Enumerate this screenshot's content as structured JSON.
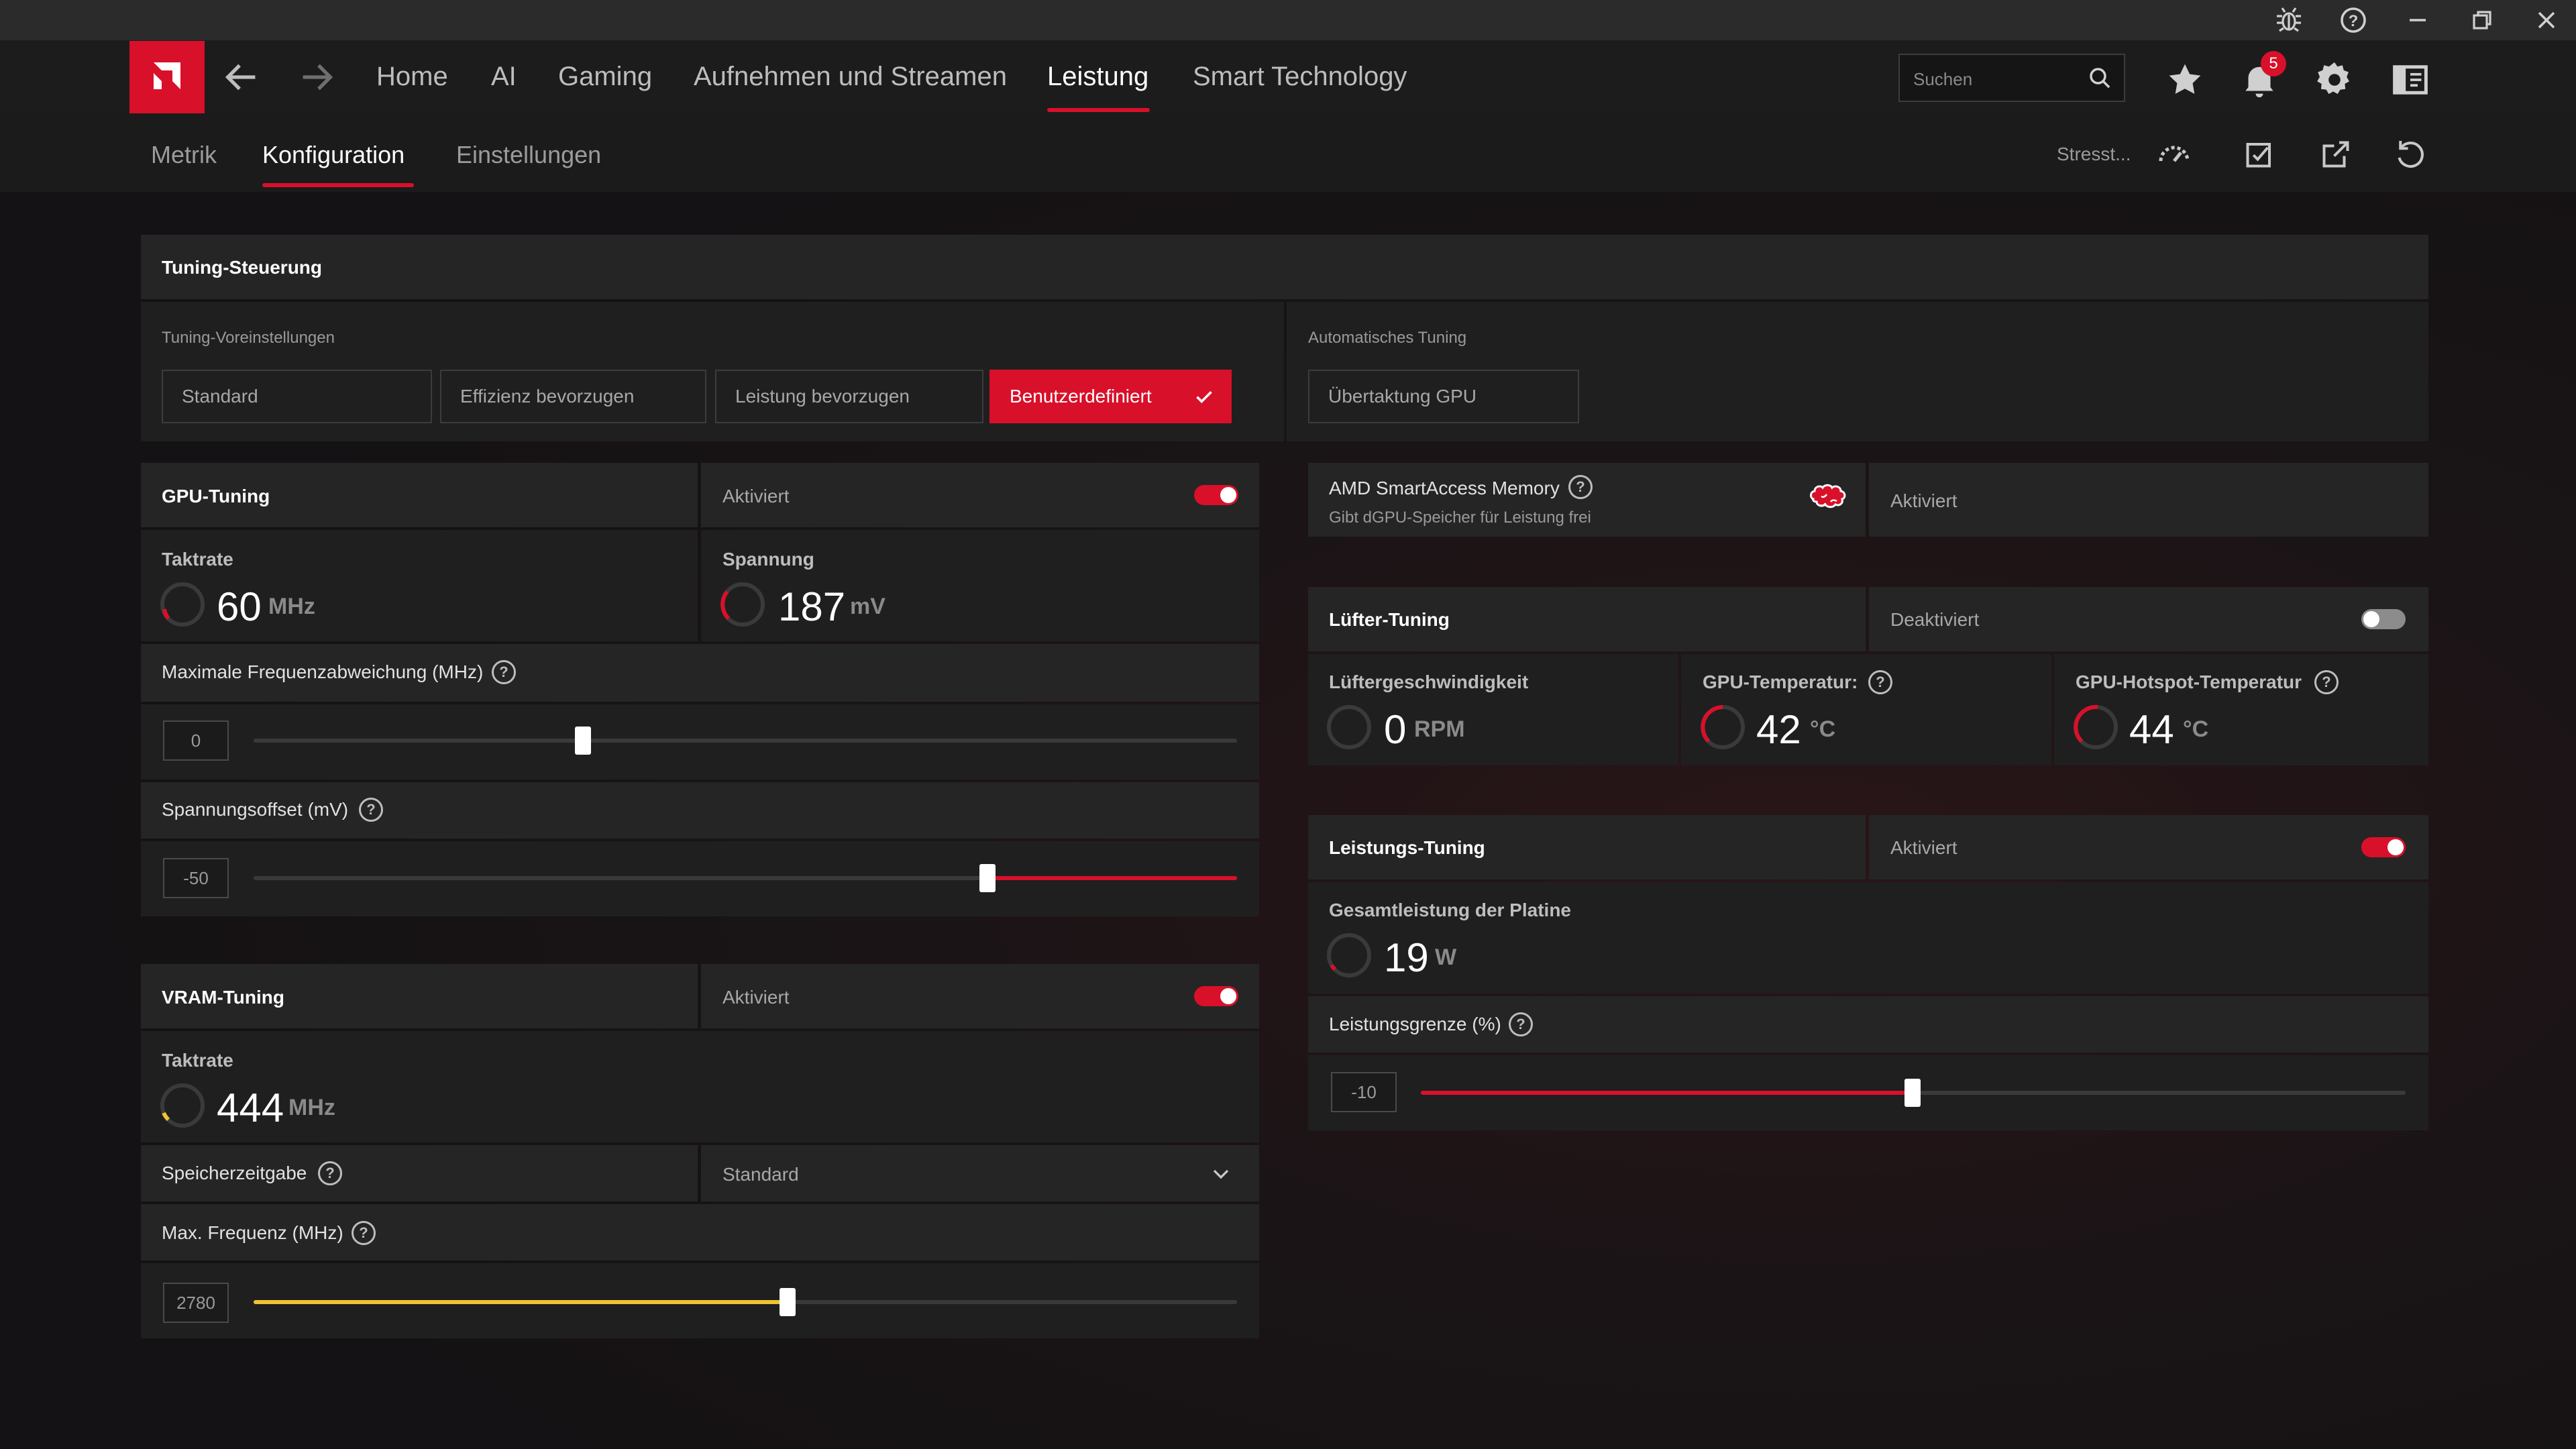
{
  "titlebar": {
    "icons": [
      "bug-icon",
      "help-icon",
      "minimize-icon",
      "restore-icon",
      "close-icon"
    ]
  },
  "nav": {
    "items": [
      "Home",
      "AI",
      "Gaming",
      "Aufnehmen und Streamen",
      "Leistung",
      "Smart Technology"
    ],
    "active": "Leistung",
    "search_placeholder": "Suchen",
    "notification_count": "5"
  },
  "subnav": {
    "items": [
      "Metrik",
      "Konfiguration",
      "Einstellungen"
    ],
    "active": "Konfiguration",
    "stress_label": "Stresst..."
  },
  "tuning_control": {
    "title": "Tuning-Steuerung",
    "presets_label": "Tuning-Voreinstellungen",
    "presets": [
      "Standard",
      "Effizienz bevorzugen",
      "Leistung bevorzugen",
      "Benutzerdefiniert"
    ],
    "selected_preset": "Benutzerdefiniert",
    "auto_label": "Automatisches Tuning",
    "auto_button": "Übertaktung GPU"
  },
  "gpu_tuning": {
    "title": "GPU-Tuning",
    "status": "Aktiviert",
    "enabled": true,
    "clock_label": "Taktrate",
    "clock_value": "60",
    "clock_unit": "MHz",
    "voltage_label": "Spannung",
    "voltage_value": "187",
    "voltage_unit": "mV",
    "freq_offset_label": "Maximale Frequenzabweichung (MHz)",
    "freq_offset_value": "0",
    "freq_offset_position": 0.33,
    "volt_offset_label": "Spannungsoffset (mV)",
    "volt_offset_value": "-50",
    "volt_offset_position": 0.745
  },
  "vram_tuning": {
    "title": "VRAM-Tuning",
    "status": "Aktiviert",
    "enabled": true,
    "clock_label": "Taktrate",
    "clock_value": "444",
    "clock_unit": "MHz",
    "timing_label": "Speicherzeitgabe",
    "timing_value": "Standard",
    "maxfreq_label": "Max. Frequenz (MHz)",
    "maxfreq_value": "2780",
    "maxfreq_position": 0.54
  },
  "smart_access_memory": {
    "title": "AMD SmartAccess Memory",
    "subtitle": "Gibt dGPU-Speicher für Leistung frei",
    "status": "Aktiviert"
  },
  "fan_tuning": {
    "title": "Lüfter-Tuning",
    "status": "Deaktiviert",
    "enabled": false,
    "fan_speed_label": "Lüftergeschwindigkeit",
    "fan_speed_value": "0",
    "fan_speed_unit": "RPM",
    "gpu_temp_label": "GPU-Temperatur:",
    "gpu_temp_value": "42",
    "gpu_temp_unit": "°C",
    "hotspot_label": "GPU-Hotspot-Temperatur",
    "hotspot_value": "44",
    "hotspot_unit": "°C"
  },
  "power_tuning": {
    "title": "Leistungs-Tuning",
    "status": "Aktiviert",
    "enabled": true,
    "board_power_label": "Gesamtleistung der Platine",
    "board_power_value": "19",
    "board_power_unit": "W",
    "limit_label": "Leistungsgrenze (%)",
    "limit_value": "-10",
    "limit_position": 0.5
  },
  "colors": {
    "accent": "#d9102a",
    "vram_accent": "#f2c230",
    "background": "#141214"
  }
}
